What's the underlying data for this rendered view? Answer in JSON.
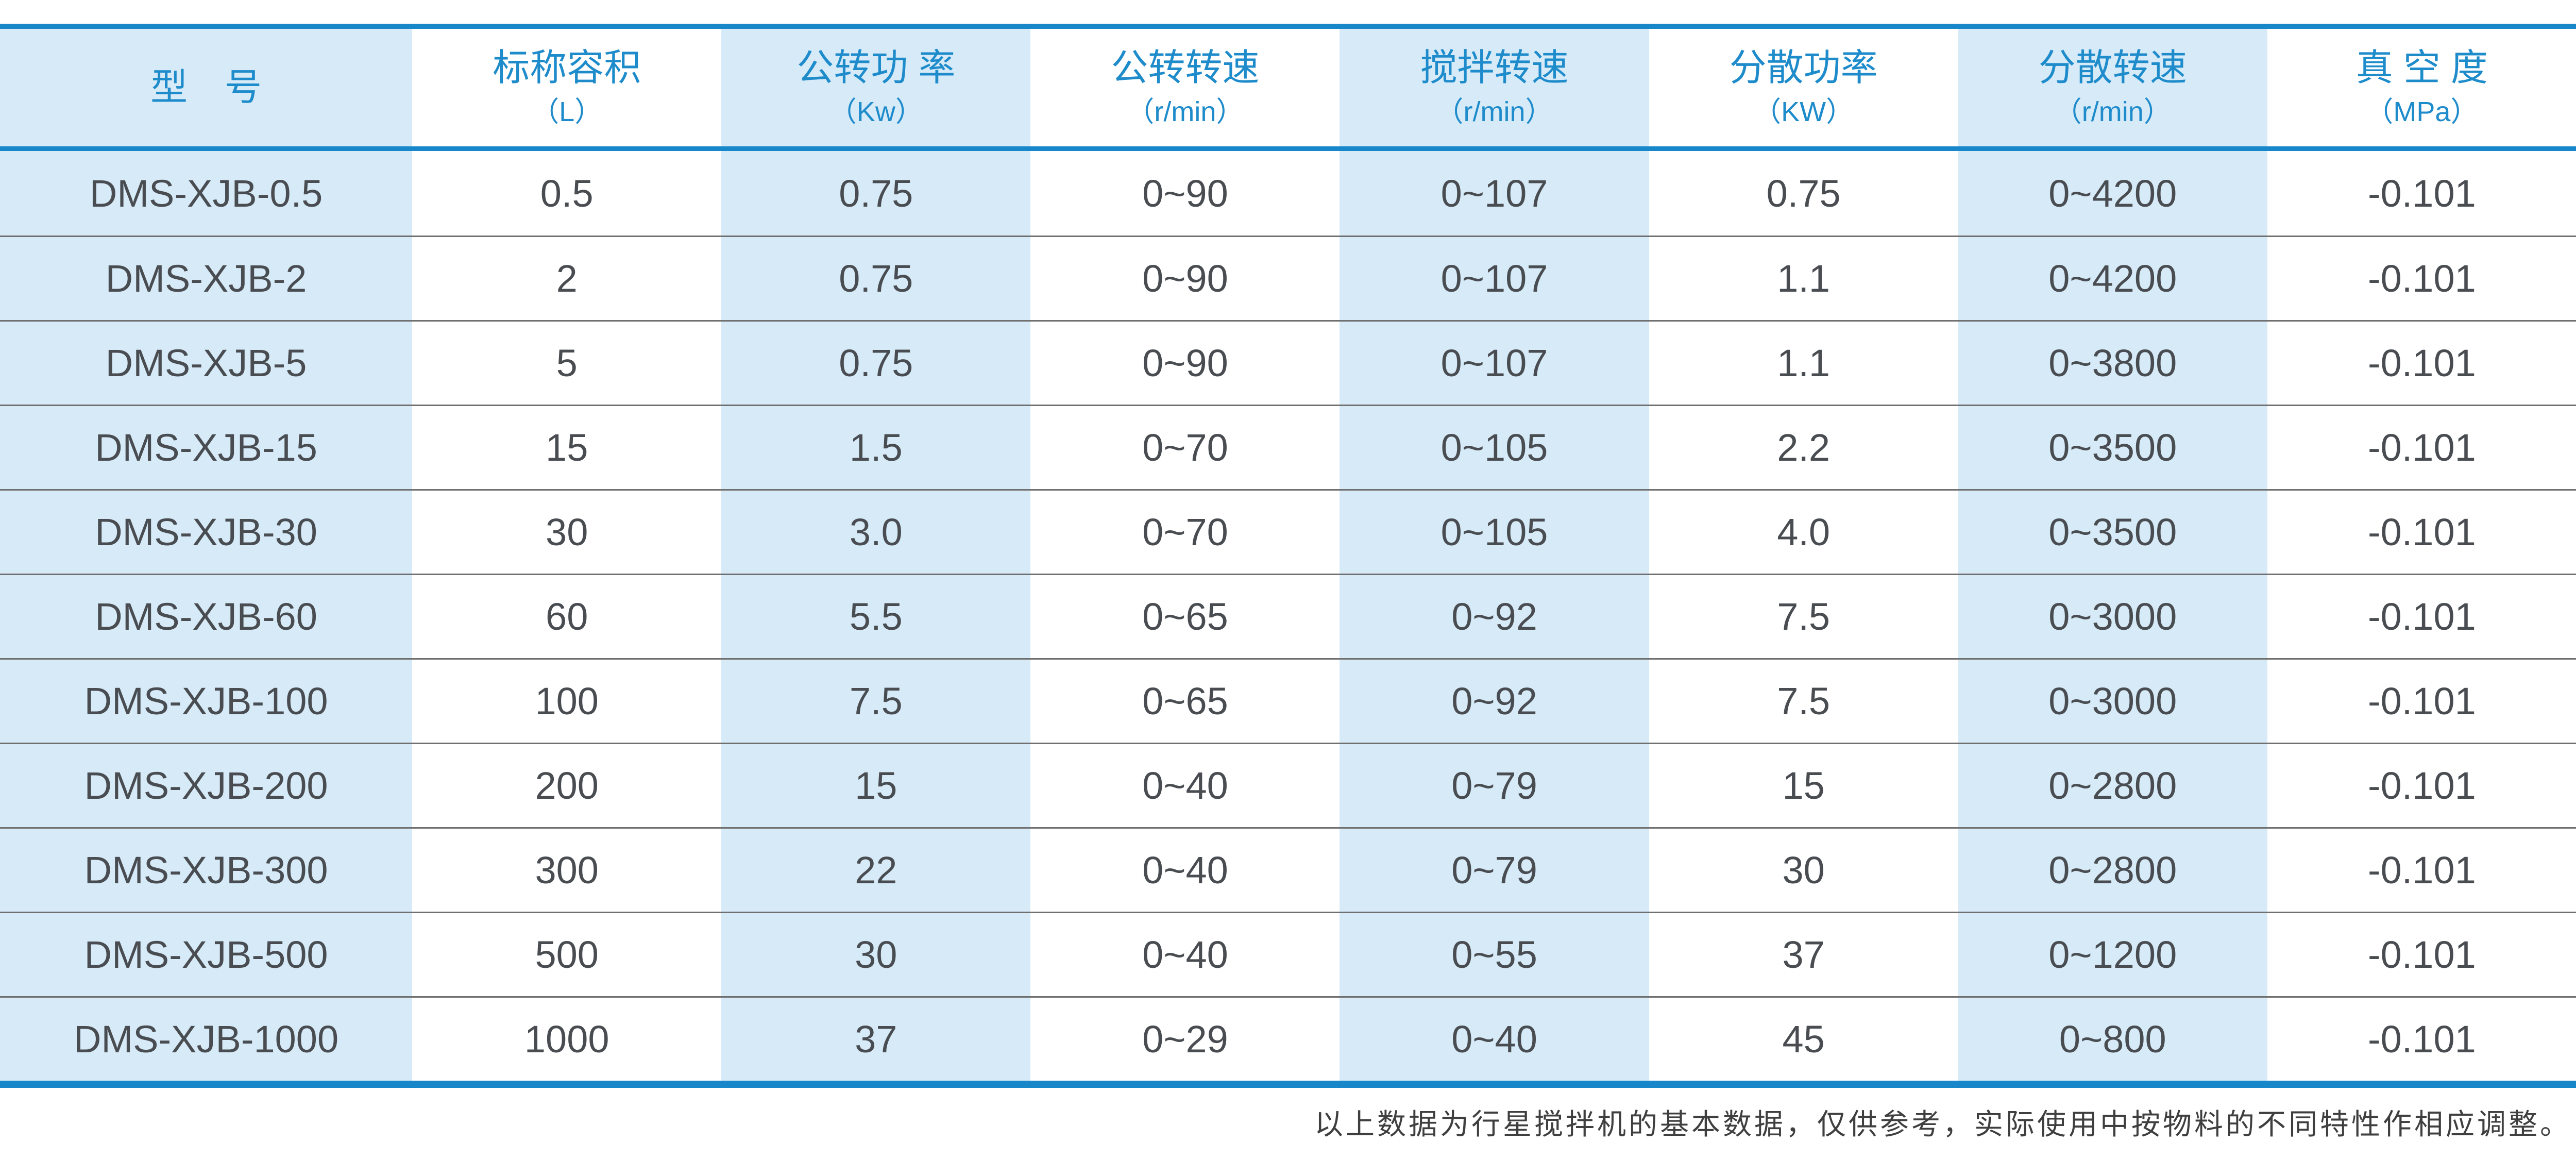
{
  "colors": {
    "accent_blue_border": "#1787c9",
    "header_text_blue": "#1e8bcb",
    "column_band_blue": "#d6eaf8",
    "column_band_white": "#ffffff",
    "cell_text": "#494d51",
    "row_separator_gray": "#707070",
    "footnote_text": "#3f3f3f"
  },
  "table": {
    "columns": [
      {
        "title": "型　号",
        "unit": ""
      },
      {
        "title": "标称容积",
        "unit": "（L）"
      },
      {
        "title": "公转功 率",
        "unit": "（Kw）"
      },
      {
        "title": "公转转速",
        "unit": "（r/min）"
      },
      {
        "title": "搅拌转速",
        "unit": "（r/min）"
      },
      {
        "title": "分散功率",
        "unit": "（KW）"
      },
      {
        "title": "分散转速",
        "unit": "（r/min）"
      },
      {
        "title": "真 空 度",
        "unit": "（MPa）"
      }
    ],
    "rows": [
      [
        "DMS-XJB-0.5",
        "0.5",
        "0.75",
        "0~90",
        "0~107",
        "0.75",
        "0~4200",
        "-0.101"
      ],
      [
        "DMS-XJB-2",
        "2",
        "0.75",
        "0~90",
        "0~107",
        "1.1",
        "0~4200",
        "-0.101"
      ],
      [
        "DMS-XJB-5",
        "5",
        "0.75",
        "0~90",
        "0~107",
        "1.1",
        "0~3800",
        "-0.101"
      ],
      [
        "DMS-XJB-15",
        "15",
        "1.5",
        "0~70",
        "0~105",
        "2.2",
        "0~3500",
        "-0.101"
      ],
      [
        "DMS-XJB-30",
        "30",
        "3.0",
        "0~70",
        "0~105",
        "4.0",
        "0~3500",
        "-0.101"
      ],
      [
        "DMS-XJB-60",
        "60",
        "5.5",
        "0~65",
        "0~92",
        "7.5",
        "0~3000",
        "-0.101"
      ],
      [
        "DMS-XJB-100",
        "100",
        "7.5",
        "0~65",
        "0~92",
        "7.5",
        "0~3000",
        "-0.101"
      ],
      [
        "DMS-XJB-200",
        "200",
        "15",
        "0~40",
        "0~79",
        "15",
        "0~2800",
        "-0.101"
      ],
      [
        "DMS-XJB-300",
        "300",
        "22",
        "0~40",
        "0~79",
        "30",
        "0~2800",
        "-0.101"
      ],
      [
        "DMS-XJB-500",
        "500",
        "30",
        "0~40",
        "0~55",
        "37",
        "0~1200",
        "-0.101"
      ],
      [
        "DMS-XJB-1000",
        "1000",
        "37",
        "0~29",
        "0~40",
        "45",
        "0~800",
        "-0.101"
      ]
    ]
  },
  "footnote": "以上数据为行星搅拌机的基本数据，仅供参考，实际使用中按物料的不同特性作相应调整。"
}
